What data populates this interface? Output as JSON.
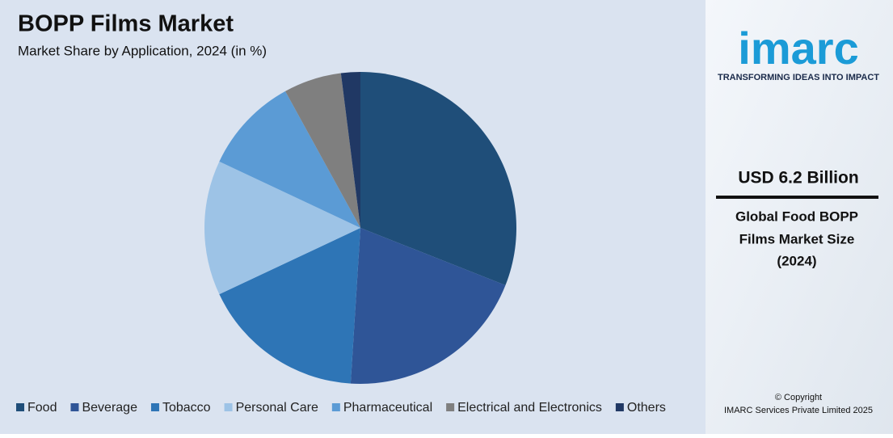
{
  "chart_data": {
    "type": "pie",
    "title": "BOPP Films Market",
    "subtitle": "Market Share by Application, 2024 (in %)",
    "categories": [
      "Food",
      "Beverage",
      "Tobacco",
      "Personal Care",
      "Pharmaceutical",
      "Electrical and Electronics",
      "Others"
    ],
    "values": [
      31,
      20,
      17,
      14,
      10,
      6,
      2
    ],
    "colors": [
      "#1f4e79",
      "#2f5597",
      "#2e75b6",
      "#9dc3e6",
      "#5b9bd5",
      "#7f7f7f",
      "#203864"
    ],
    "legend": "bottom"
  },
  "sidebar": {
    "logo": "imarc",
    "tagline": "TRANSFORMING IDEAS INTO IMPACT",
    "headline": "USD 6.2 Billion",
    "caption": [
      "Global Food BOPP",
      "Films Market Size",
      "(2024)"
    ],
    "copyright": [
      "© Copyright",
      "IMARC Services Private Limited 2025"
    ]
  }
}
